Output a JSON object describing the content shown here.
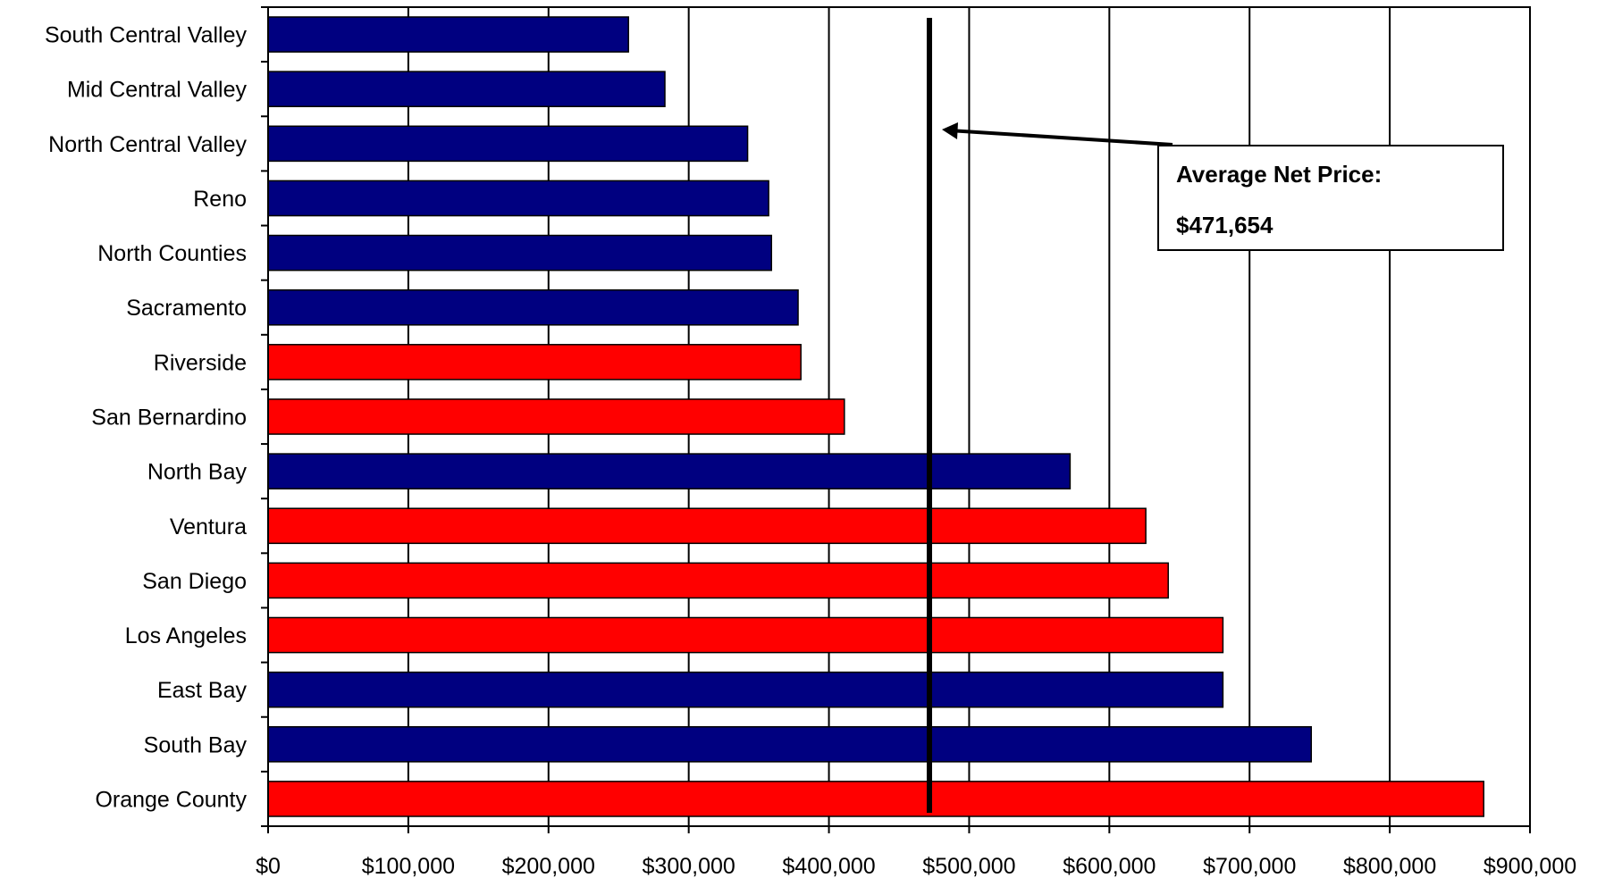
{
  "chart_data": {
    "type": "bar",
    "orientation": "horizontal",
    "categories": [
      "South Central Valley",
      "Mid Central Valley",
      "North Central Valley",
      "Reno",
      "North Counties",
      "Sacramento",
      "Riverside",
      "San Bernardino",
      "North Bay",
      "Ventura",
      "San Diego",
      "Los Angeles",
      "East Bay",
      "South Bay",
      "Orange County"
    ],
    "values": [
      257000,
      283000,
      342000,
      357000,
      359000,
      378000,
      380000,
      411000,
      572000,
      626000,
      642000,
      681000,
      681000,
      744000,
      867000
    ],
    "bar_colors": [
      "#000080",
      "#000080",
      "#000080",
      "#000080",
      "#000080",
      "#000080",
      "#ff0000",
      "#ff0000",
      "#000080",
      "#ff0000",
      "#ff0000",
      "#ff0000",
      "#000080",
      "#000080",
      "#ff0000"
    ],
    "xlim": [
      0,
      900000
    ],
    "x_tick_values": [
      0,
      100000,
      200000,
      300000,
      400000,
      500000,
      600000,
      700000,
      800000,
      900000
    ],
    "x_tick_labels": [
      "$0",
      "$100,000",
      "$200,000",
      "$300,000",
      "$400,000",
      "$500,000",
      "$600,000",
      "$700,000",
      "$800,000",
      "$900,000"
    ],
    "grid": "vertical",
    "reference_line": {
      "value": 471654
    },
    "annotation": {
      "line1": "Average Net Price:",
      "line2": "$471,654"
    },
    "title": "",
    "xlabel": "",
    "ylabel": ""
  },
  "colors": {
    "blue_series": "#000080",
    "red_series": "#ff0000",
    "axis": "#000000"
  }
}
